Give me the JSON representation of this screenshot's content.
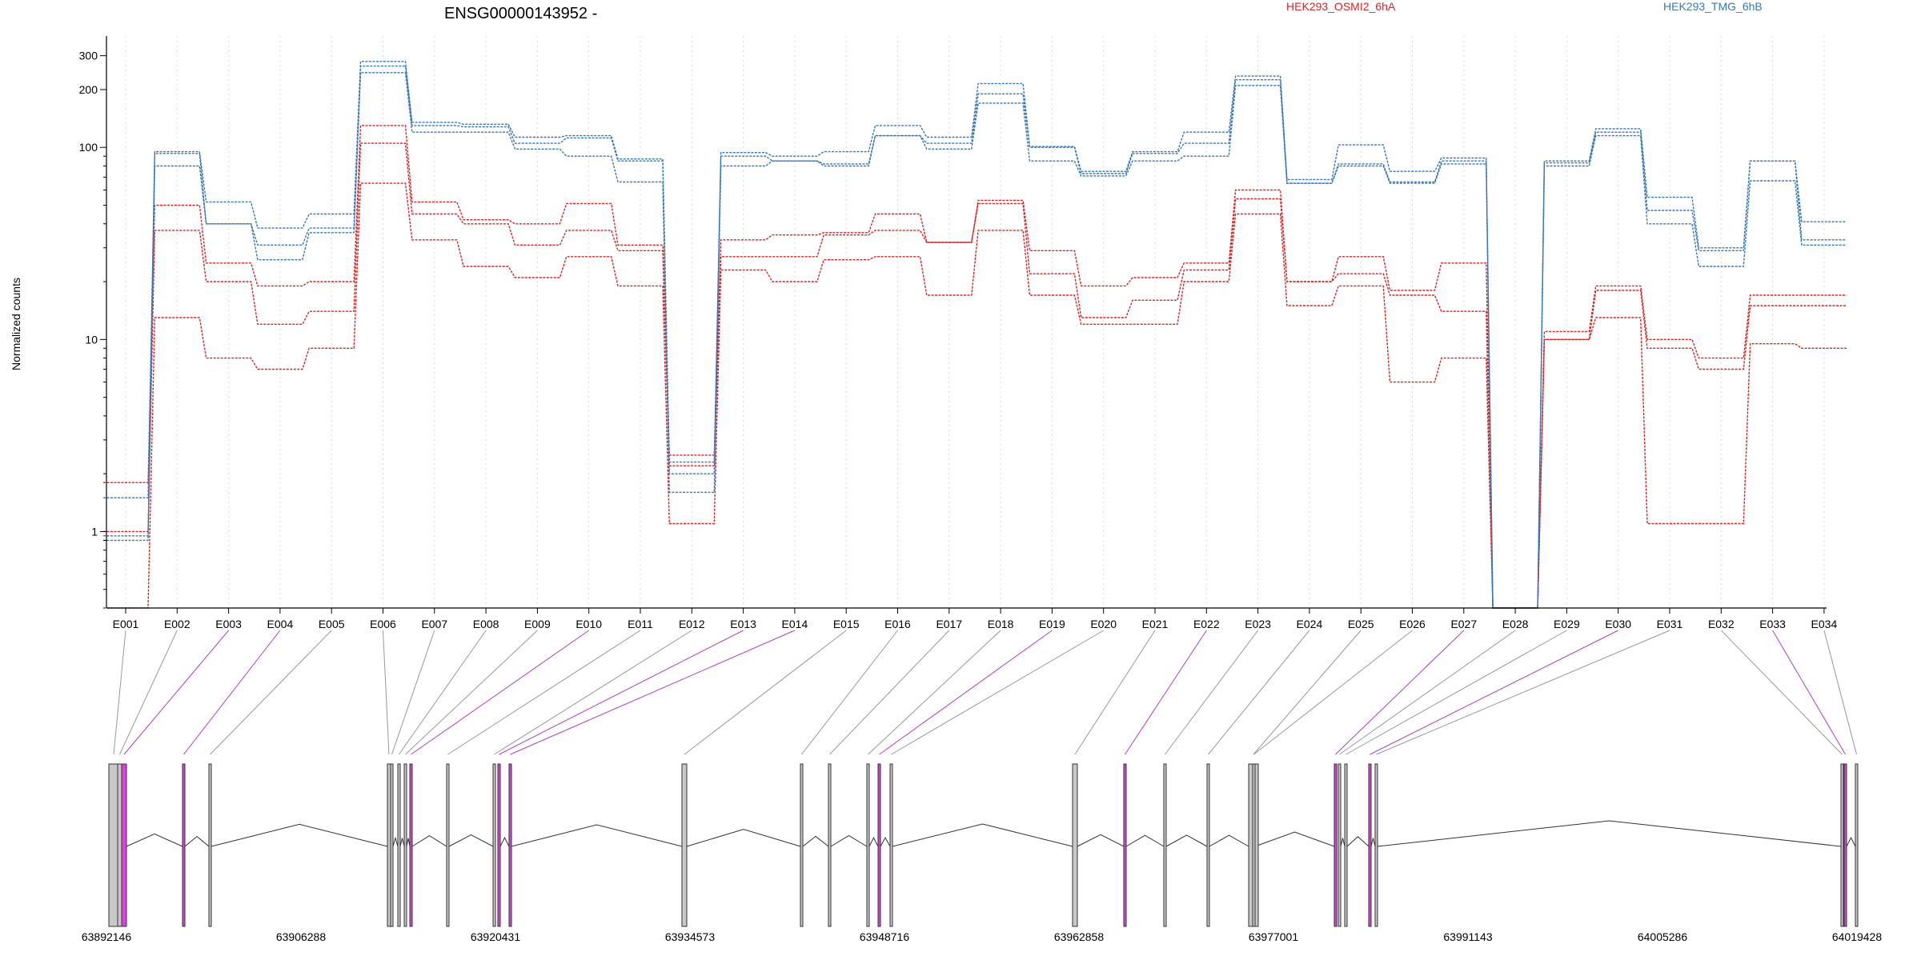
{
  "chart_data": {
    "type": "line",
    "title": "ENSG00000143952 -",
    "xlabel": "",
    "ylabel": "Normalized counts",
    "y_scale": "log",
    "ylim": [
      0.4,
      380
    ],
    "y_ticks": [
      1,
      10,
      100,
      200,
      300
    ],
    "y_tick_labels": [
      "1",
      "10",
      "100",
      "200",
      "300"
    ],
    "grid": "vertical dotted lines at each exon",
    "legend_placement": "top",
    "categories": [
      "E001",
      "E002",
      "E003",
      "E004",
      "E005",
      "E006",
      "E007",
      "E008",
      "E009",
      "E010",
      "E011",
      "E012",
      "E013",
      "E014",
      "E015",
      "E016",
      "E017",
      "E018",
      "E019",
      "E020",
      "E021",
      "E022",
      "E023",
      "E024",
      "E025",
      "E026",
      "E027",
      "E028",
      "E029",
      "E030",
      "E031",
      "E032",
      "E033",
      "E034"
    ],
    "colors": {
      "HEK293_OSMI2_6hA": "#d62728",
      "HEK293_TMG_6hB": "#3a78b5",
      "exon": "#c8c8c8",
      "exon_highlight": "#e040e0",
      "connector": "#999999",
      "connector_highlight": "#b040c0",
      "intron": "#333333"
    },
    "series": [
      {
        "group": "HEK293_OSMI2_6hA",
        "values": [
          1.8,
          50,
          25,
          19,
          20,
          130,
          52,
          42,
          40,
          51,
          31,
          2.5,
          33,
          35,
          36,
          45,
          32,
          53,
          29,
          19,
          21,
          25,
          60,
          20,
          27,
          18,
          25,
          0.4,
          11,
          19,
          10,
          8,
          17,
          17
        ]
      },
      {
        "group": "HEK293_OSMI2_6hA",
        "values": [
          1.0,
          37,
          20,
          12,
          14,
          105,
          45,
          40,
          31,
          37,
          29,
          2.2,
          27,
          27,
          35,
          37,
          32,
          51,
          22,
          13,
          16,
          23,
          54,
          20,
          22,
          17,
          14,
          0.4,
          10,
          18,
          9,
          7,
          15,
          15
        ]
      },
      {
        "group": "HEK293_OSMI2_6hA",
        "values": [
          0.4,
          13,
          8,
          7,
          9,
          65,
          33,
          24,
          21,
          27,
          19,
          1.1,
          23,
          20,
          26,
          27,
          17,
          37,
          17,
          12,
          12,
          20,
          45,
          15,
          19,
          6,
          8,
          0.4,
          10,
          13,
          1.1,
          1.1,
          9.5,
          9
        ]
      },
      {
        "group": "HEK293_TMG_6hB",
        "values": [
          1.5,
          95,
          52,
          38,
          45,
          280,
          135,
          132,
          113,
          115,
          87,
          2.3,
          94,
          90,
          95,
          130,
          113,
          215,
          101,
          75,
          95,
          120,
          235,
          68,
          103,
          75,
          88,
          0.4,
          85,
          125,
          55,
          30,
          85,
          41
        ]
      },
      {
        "group": "HEK293_TMG_6hB",
        "values": [
          0.95,
          93,
          40,
          31,
          38,
          265,
          130,
          128,
          105,
          112,
          85,
          2.0,
          90,
          85,
          82,
          115,
          105,
          190,
          100,
          73,
          93,
          105,
          225,
          65,
          82,
          66,
          85,
          0.4,
          83,
          120,
          47,
          29,
          85,
          33
        ]
      },
      {
        "group": "HEK293_TMG_6hB",
        "values": [
          0.9,
          80,
          40,
          26,
          36,
          245,
          120,
          120,
          98,
          90,
          66,
          1.6,
          80,
          85,
          80,
          115,
          98,
          170,
          85,
          71,
          85,
          90,
          210,
          65,
          80,
          65,
          82,
          0.4,
          80,
          115,
          40,
          24,
          67,
          31
        ]
      }
    ],
    "genome_coordinate_labels": [
      "63892146",
      "63906288",
      "63920431",
      "63934573",
      "63948716",
      "63962858",
      "63977001",
      "63991143",
      "64005286",
      "64019428"
    ],
    "exon_highlighted": [
      false,
      false,
      true,
      true,
      false,
      false,
      false,
      false,
      false,
      true,
      false,
      false,
      true,
      true,
      false,
      false,
      false,
      false,
      true,
      false,
      false,
      true,
      false,
      false,
      false,
      false,
      true,
      false,
      false,
      true,
      false,
      false,
      true,
      false
    ]
  },
  "legend": {
    "group_a": "HEK293_OSMI2_6hA",
    "group_b": "HEK293_TMG_6hB"
  }
}
